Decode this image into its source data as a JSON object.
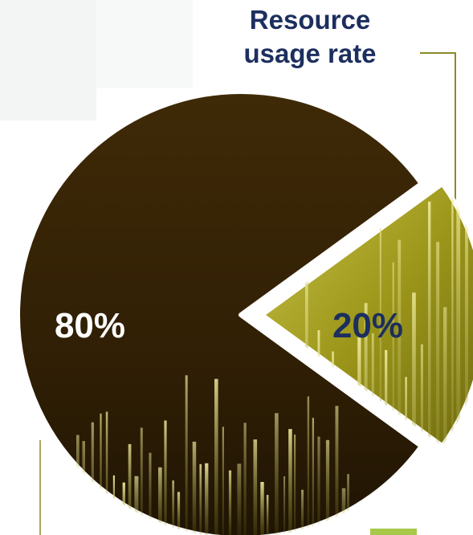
{
  "chart_data": {
    "type": "pie",
    "title": "Resource usage rate",
    "title_lines": [
      "Resource",
      "usage rate"
    ],
    "slices": [
      {
        "value": 80,
        "label": "80%",
        "color": "#3a2606",
        "label_color": "#ffffff"
      },
      {
        "value": 20,
        "label": "20%",
        "color": "#a8a21c",
        "label_color": "#1c2f5e",
        "exploded": true
      }
    ],
    "legend": "none"
  },
  "colors": {
    "title": "#1c2f5e",
    "leader_line": "#8a8a2a",
    "accent": "#a8c84a"
  }
}
